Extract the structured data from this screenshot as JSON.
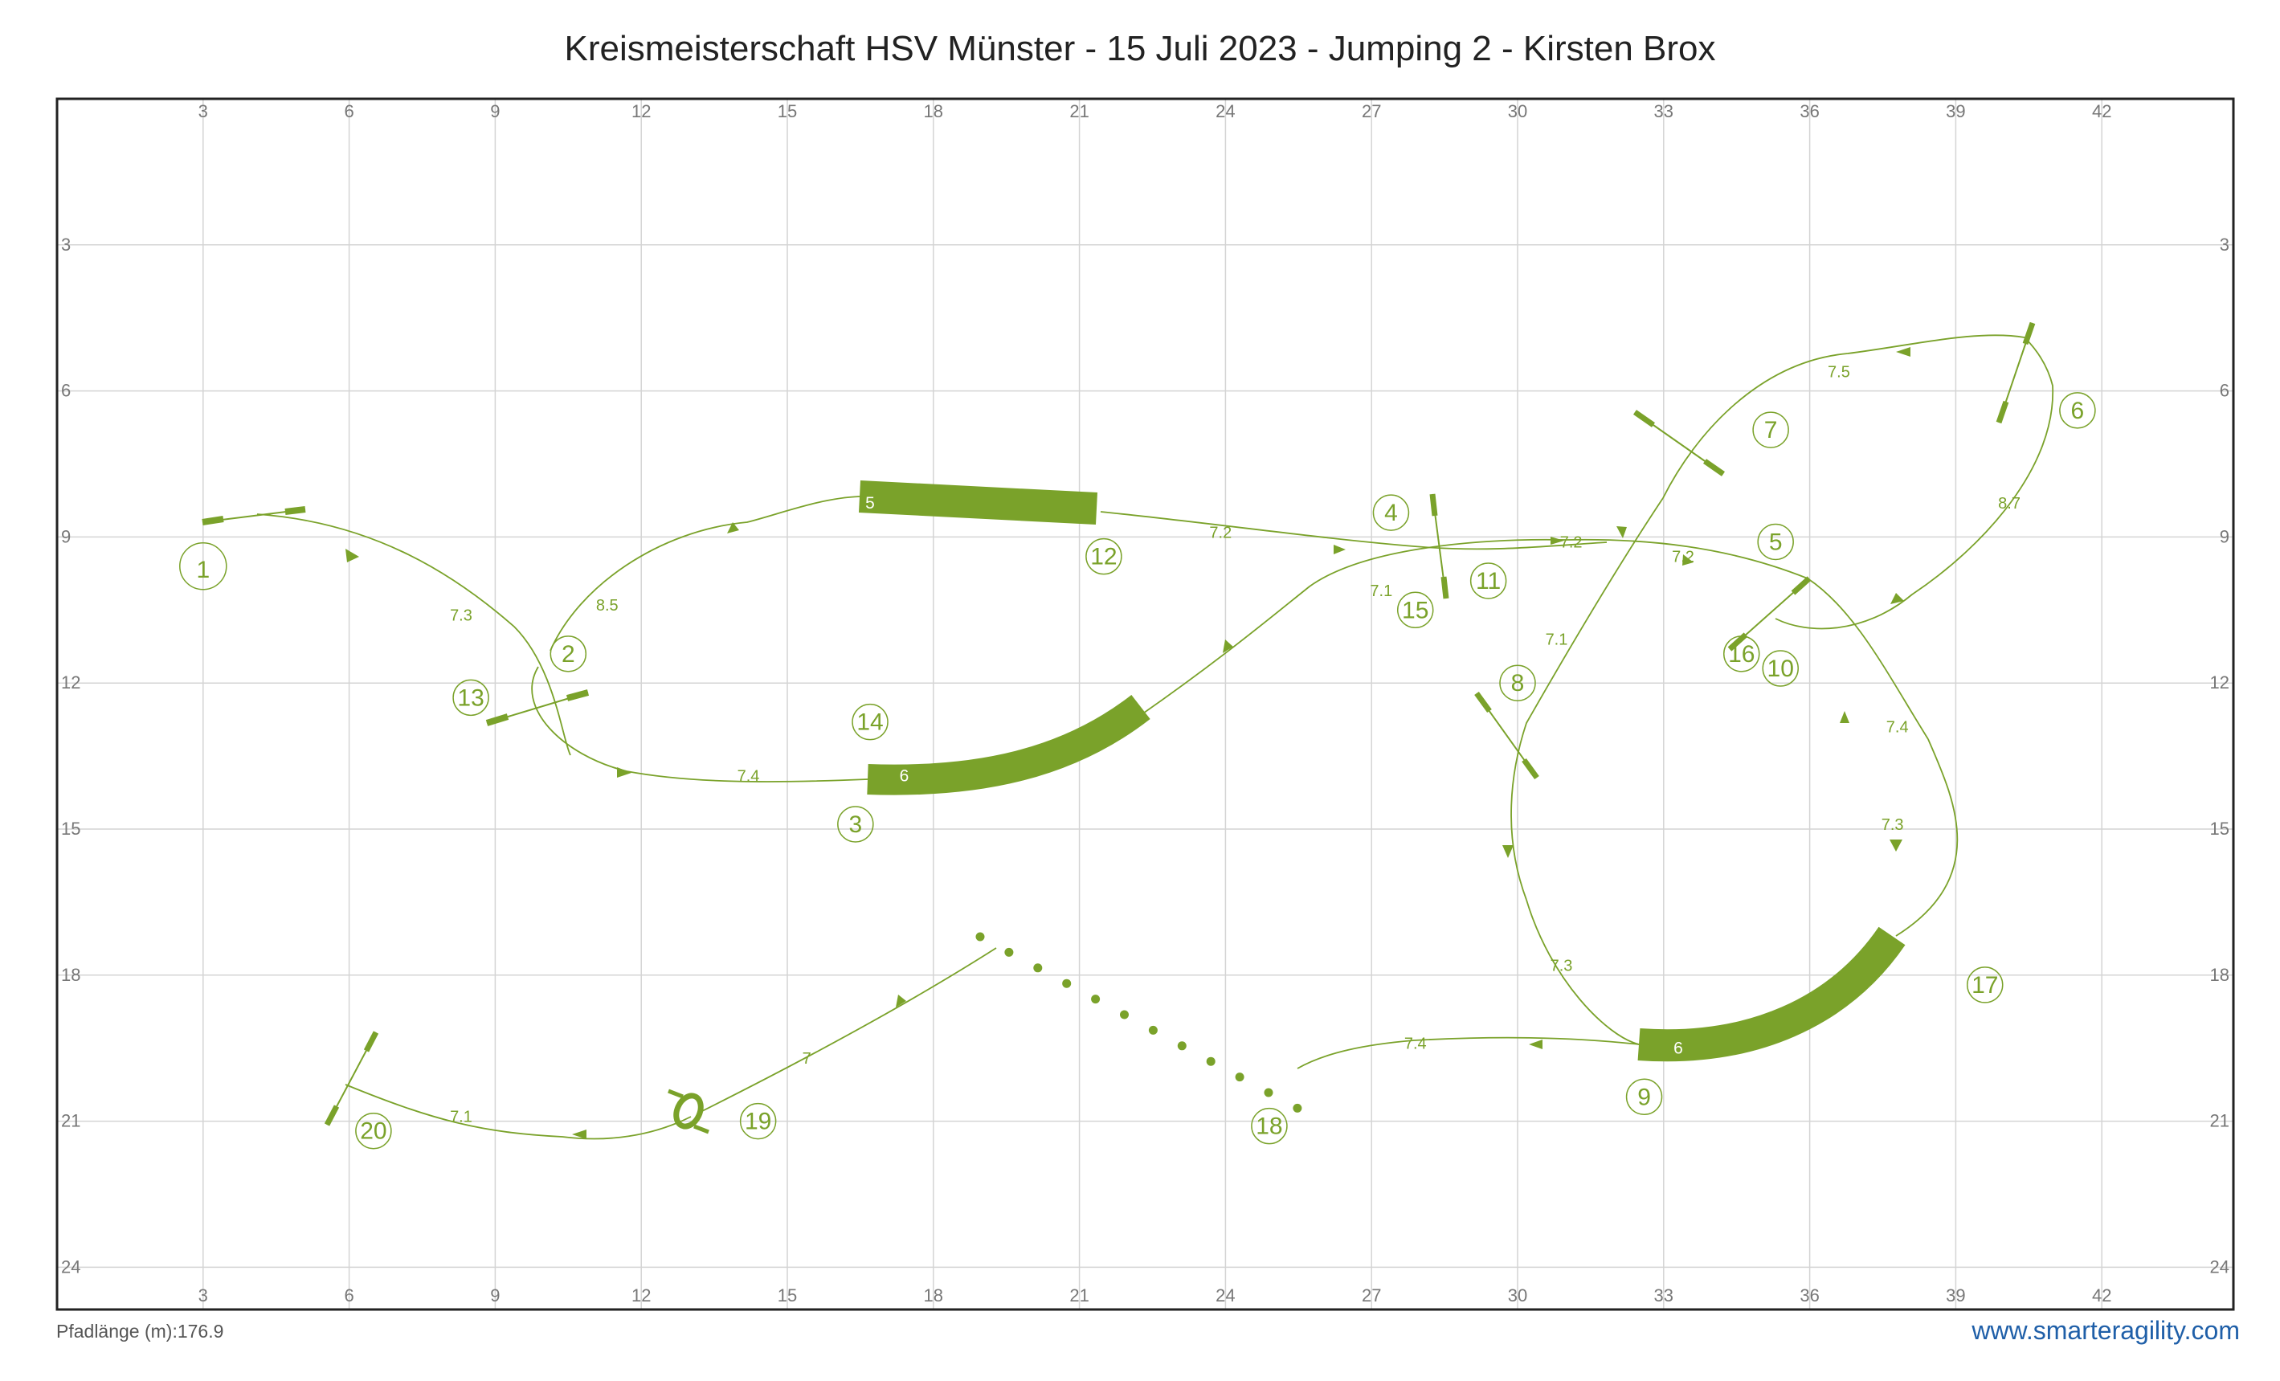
{
  "title": "Kreismeisterschaft HSV Münster - 15 Juli 2023 - Jumping 2 - Kirsten Brox",
  "footer": {
    "path_length": "Pfadlänge (m):176.9",
    "brand": "www.smarteragility.com"
  },
  "colors": {
    "course": "#7aa22a",
    "grid": "#d4d4d4",
    "frame": "#222222"
  },
  "grid": {
    "x_ticks": [
      "3",
      "6",
      "9",
      "12",
      "15",
      "18",
      "21",
      "24",
      "27",
      "30",
      "33",
      "36",
      "39",
      "42"
    ],
    "y_ticks": [
      "3",
      "6",
      "9",
      "12",
      "15",
      "18",
      "21",
      "24"
    ]
  },
  "numbers": [
    {
      "label": "1",
      "x": 3.0,
      "y": 9.6,
      "size": "large"
    },
    {
      "label": "2",
      "x": 10.5,
      "y": 11.4
    },
    {
      "label": "3",
      "x": 16.4,
      "y": 14.9
    },
    {
      "label": "4",
      "x": 27.4,
      "y": 8.5
    },
    {
      "label": "5",
      "x": 35.3,
      "y": 9.1
    },
    {
      "label": "6",
      "x": 41.5,
      "y": 6.4
    },
    {
      "label": "7",
      "x": 35.2,
      "y": 6.8
    },
    {
      "label": "8",
      "x": 30.0,
      "y": 12.0
    },
    {
      "label": "9",
      "x": 32.6,
      "y": 20.5
    },
    {
      "label": "10",
      "x": 35.4,
      "y": 11.7
    },
    {
      "label": "11",
      "x": 29.4,
      "y": 9.9
    },
    {
      "label": "12",
      "x": 21.5,
      "y": 9.4
    },
    {
      "label": "13",
      "x": 8.5,
      "y": 12.3
    },
    {
      "label": "14",
      "x": 16.7,
      "y": 12.8
    },
    {
      "label": "15",
      "x": 27.9,
      "y": 10.5
    },
    {
      "label": "16",
      "x": 34.6,
      "y": 11.4
    },
    {
      "label": "17",
      "x": 39.6,
      "y": 18.2
    },
    {
      "label": "18",
      "x": 24.9,
      "y": 21.1
    },
    {
      "label": "19",
      "x": 14.4,
      "y": 21.0
    },
    {
      "label": "20",
      "x": 6.5,
      "y": 21.2
    }
  ],
  "distances": [
    {
      "label": "7.3",
      "x": 8.3,
      "y": 10.6
    },
    {
      "label": "8.5",
      "x": 11.3,
      "y": 10.4
    },
    {
      "label": "7.4",
      "x": 14.2,
      "y": 13.9
    },
    {
      "label": "7.2",
      "x": 23.9,
      "y": 8.9
    },
    {
      "label": "7.1",
      "x": 27.2,
      "y": 10.1
    },
    {
      "label": "7.2",
      "x": 31.1,
      "y": 9.1
    },
    {
      "label": "7.2",
      "x": 33.4,
      "y": 9.4
    },
    {
      "label": "7.5",
      "x": 36.6,
      "y": 5.6
    },
    {
      "label": "8.7",
      "x": 40.1,
      "y": 8.3
    },
    {
      "label": "7.1",
      "x": 30.8,
      "y": 11.1
    },
    {
      "label": "7.4",
      "x": 37.8,
      "y": 12.9
    },
    {
      "label": "7.3",
      "x": 37.7,
      "y": 14.9
    },
    {
      "label": "7.3",
      "x": 30.9,
      "y": 17.8
    },
    {
      "label": "7.4",
      "x": 27.9,
      "y": 19.4
    },
    {
      "label": "7",
      "x": 15.4,
      "y": 19.7
    },
    {
      "label": "7.1",
      "x": 8.3,
      "y": 20.9
    }
  ],
  "tunnels": [
    {
      "label": "5",
      "x": 16.7,
      "y": 8.3
    },
    {
      "label": "6",
      "x": 17.4,
      "y": 13.9
    },
    {
      "label": "6",
      "x": 33.3,
      "y": 19.5
    }
  ]
}
